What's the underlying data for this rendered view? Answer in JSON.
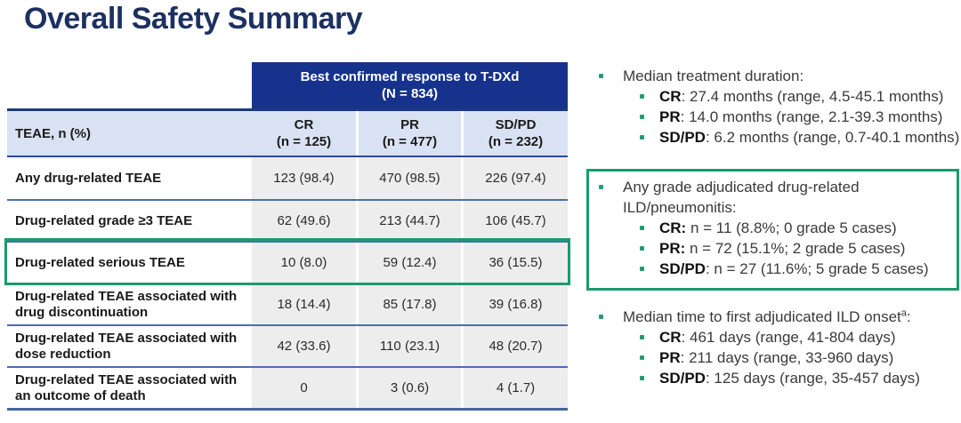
{
  "slide": {
    "title": "Overall Safety Summary"
  },
  "colors": {
    "title_navy": "#1d3160",
    "header_blue": "#16328c",
    "subheader_bg": "#d9e2f3",
    "value_cell_bg": "#ededed",
    "row_line_blue": "#4a6fae",
    "highlight_green": "#1b9a6e",
    "bullet_green": "#249c72"
  },
  "table": {
    "span_header": {
      "line1": "Best confirmed response to T-DXd",
      "line2": "(N = 834)"
    },
    "header": {
      "label": "TEAE, n (%)",
      "cols": [
        {
          "line1": "CR",
          "line2": "(n = 125)"
        },
        {
          "line1": "PR",
          "line2": "(n = 477)"
        },
        {
          "line1": "SD/PD",
          "line2": "(n = 232)"
        }
      ]
    },
    "rows": [
      {
        "label": "Any drug-related TEAE",
        "values": [
          "123 (98.4)",
          "470 (98.5)",
          "226 (97.4)"
        ],
        "highlight": false
      },
      {
        "label": "Drug-related grade ≥3 TEAE",
        "values": [
          "62 (49.6)",
          "213 (44.7)",
          "106 (45.7)"
        ],
        "highlight": false
      },
      {
        "label": "Drug-related serious TEAE",
        "values": [
          "10 (8.0)",
          "59 (12.4)",
          "36 (15.5)"
        ],
        "highlight": true
      },
      {
        "label": "Drug-related TEAE associated with drug discontinuation",
        "values": [
          "18 (14.4)",
          "85 (17.8)",
          "39 (16.8)"
        ],
        "highlight": false
      },
      {
        "label": "Drug-related TEAE associated with dose reduction",
        "values": [
          "42 (33.6)",
          "110 (23.1)",
          "48 (20.7)"
        ],
        "highlight": false
      },
      {
        "label": "Drug-related TEAE associated with an outcome of death",
        "values": [
          "0",
          "3 (0.6)",
          "4 (1.7)"
        ],
        "highlight": false
      }
    ]
  },
  "bullets": [
    {
      "title": "Median treatment duration:",
      "boxed": false,
      "items": [
        {
          "label": "CR",
          "text": ": 27.4 months (range, 4.5-45.1 months)"
        },
        {
          "label": "PR",
          "text": ": 14.0 months (range, 2.1-39.3 months)"
        },
        {
          "label": "SD/PD",
          "text": ": 6.2 months (range, 0.7-40.1 months)"
        }
      ]
    },
    {
      "title": "Any grade adjudicated drug-related ILD/pneumonitis:",
      "boxed": true,
      "items": [
        {
          "label": "CR:",
          "text": " n = 11 (8.8%; 0 grade 5 cases)"
        },
        {
          "label": "PR:",
          "text": " n = 72 (15.1%; 2 grade 5 cases)"
        },
        {
          "label": "SD/PD",
          "text": ": n = 27 (11.6%; 5 grade 5 cases)"
        }
      ]
    },
    {
      "title": "Median time to first adjudicated ILD onset",
      "title_sup": "a",
      "title_tail": ":",
      "boxed": false,
      "items": [
        {
          "label": "CR",
          "text": ": 461 days (range, 41-804 days)"
        },
        {
          "label": "PR",
          "text": ": 211 days (range, 33-960 days)"
        },
        {
          "label": "SD/PD",
          "text": ": 125 days (range, 35-457 days)"
        }
      ]
    }
  ]
}
